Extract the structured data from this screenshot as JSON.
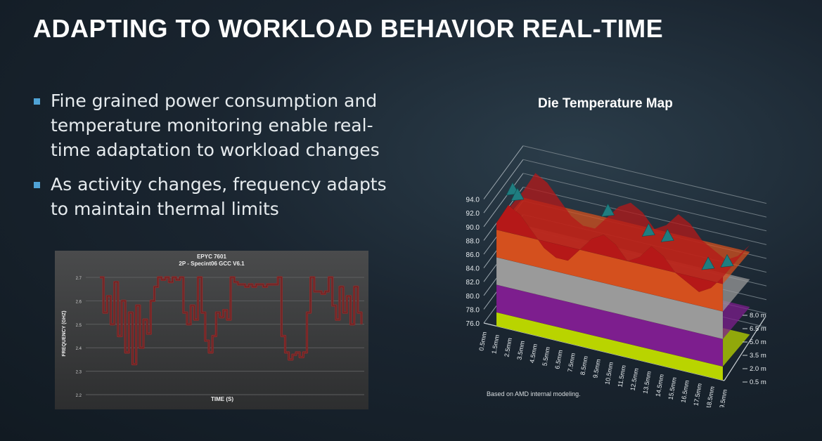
{
  "slide": {
    "title": "ADAPTING TO WORKLOAD BEHAVIOR REAL-TIME",
    "bullets": [
      "Fine grained power consumption and temperature monitoring enable real-time adaptation to workload changes",
      "As activity changes, frequency adapts to maintain thermal limits"
    ],
    "footnote": "Based on AMD internal modeling."
  },
  "colors": {
    "accent": "#4fa3d6",
    "freq_line": "#8e2b2b",
    "layer_yellow": "#b9d400",
    "layer_purple": "#7d1e8e",
    "layer_gray": "#9a9a9a",
    "layer_orange": "#d4501e",
    "layer_red": "#b51818",
    "peak_teal": "#1f7d80"
  },
  "chart_data": [
    {
      "type": "line",
      "title": "EPYC 7601",
      "subtitle": "2P - Specint06 GCC V6.1",
      "xlabel": "TIME (S)",
      "ylabel": "FREQUENCY (GHZ)",
      "ylim": [
        2.2,
        2.7
      ],
      "yticks": [
        "2.7",
        "2.6",
        "2.5",
        "2.4",
        "2.3",
        "2.2"
      ],
      "grid": true,
      "series": [
        {
          "values": [
            2.7,
            2.55,
            2.62,
            2.5,
            2.68,
            2.45,
            2.6,
            2.38,
            2.55,
            2.33,
            2.58,
            2.4,
            2.52,
            2.46,
            2.6,
            2.66,
            2.7,
            2.69,
            2.7,
            2.68,
            2.7,
            2.69,
            2.7,
            2.55,
            2.5,
            2.58,
            2.52,
            2.7,
            2.55,
            2.43,
            2.38,
            2.45,
            2.55,
            2.53,
            2.56,
            2.52,
            2.7,
            2.68,
            2.67,
            2.67,
            2.66,
            2.67,
            2.66,
            2.67,
            2.67,
            2.66,
            2.67,
            2.67,
            2.67,
            2.7,
            2.45,
            2.38,
            2.35,
            2.37,
            2.38,
            2.36,
            2.38,
            2.55,
            2.7,
            2.64,
            2.64,
            2.63,
            2.64,
            2.7,
            2.58,
            2.52,
            2.66,
            2.55,
            2.62,
            2.5,
            2.66,
            2.55,
            2.5
          ]
        }
      ]
    },
    {
      "type": "surface",
      "title": "Die Temperature Map",
      "zlim": [
        76.0,
        94.0
      ],
      "zticks": [
        "94.0",
        "92.0",
        "90.0",
        "88.0",
        "86.0",
        "84.0",
        "82.0",
        "80.0",
        "78.0",
        "76.0"
      ],
      "x_ticks": [
        "0.5mm",
        "1.5mm",
        "2.5mm",
        "3.5mm",
        "4.5mm",
        "5.5mm",
        "6.5mm",
        "7.5mm",
        "8.5mm",
        "9.5mm",
        "10.5mm",
        "11.5mm",
        "12.5mm",
        "13.5mm",
        "14.5mm",
        "15.5mm",
        "16.5mm",
        "17.5mm",
        "18.5mm",
        "19.5mm"
      ],
      "y_ticks": [
        "8.0 mm",
        "6.5 mm",
        "5.0 mm",
        "3.5 mm",
        "2.0 mm",
        "0.5 mm"
      ],
      "bands": [
        {
          "from": 76.0,
          "to": 78.0,
          "color": "#b9d400"
        },
        {
          "from": 78.0,
          "to": 82.0,
          "color": "#7d1e8e"
        },
        {
          "from": 82.0,
          "to": 86.0,
          "color": "#9a9a9a"
        },
        {
          "from": 86.0,
          "to": 90.0,
          "color": "#d4501e"
        },
        {
          "from": 90.0,
          "to": 94.0,
          "color": "#b51818"
        }
      ],
      "peak_temperature": 95.0,
      "front_profile": [
        91,
        94,
        93,
        91,
        89,
        88,
        88,
        90,
        92,
        93,
        92,
        90,
        91,
        93,
        92,
        90,
        89,
        88,
        89,
        91
      ]
    }
  ]
}
